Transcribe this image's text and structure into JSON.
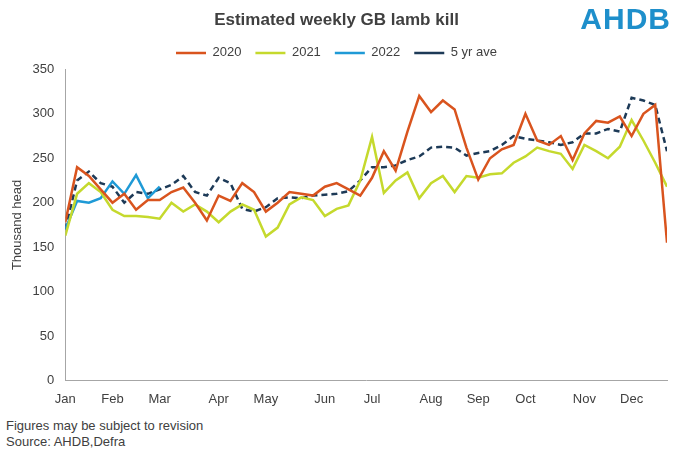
{
  "chart_data": {
    "type": "line",
    "title": "Estimated weekly GB lamb kill",
    "y_label": "Thousand head",
    "logo": "AHDB",
    "footnotes": [
      "Figures may be subject to revision",
      "Source: AHDB,Defra"
    ],
    "categories": [
      "Jan",
      null,
      null,
      null,
      "Feb",
      null,
      null,
      null,
      "Mar",
      null,
      null,
      null,
      null,
      "Apr",
      null,
      null,
      null,
      "May",
      null,
      null,
      null,
      null,
      "Jun",
      null,
      null,
      null,
      "Jul",
      null,
      null,
      null,
      null,
      "Aug",
      null,
      null,
      null,
      "Sep",
      null,
      null,
      null,
      "Oct",
      null,
      null,
      null,
      null,
      "Nov",
      null,
      null,
      null,
      "Dec",
      null,
      null,
      null
    ],
    "series": [
      {
        "name": "2020",
        "color": "#d9541e",
        "line_style": "solid",
        "values": [
          178,
          240,
          230,
          215,
          200,
          210,
          192,
          203,
          203,
          212,
          217,
          200,
          180,
          208,
          202,
          222,
          212,
          190,
          200,
          212,
          210,
          208,
          218,
          222,
          215,
          208,
          228,
          258,
          236,
          280,
          320,
          302,
          315,
          305,
          262,
          226,
          250,
          260,
          265,
          300,
          270,
          265,
          275,
          248,
          278,
          292,
          290,
          297,
          275,
          300,
          310,
          155
        ]
      },
      {
        "name": "2021",
        "color": "#c5d92d",
        "line_style": "solid",
        "values": [
          163,
          210,
          222,
          212,
          192,
          185,
          185,
          184,
          182,
          200,
          190,
          198,
          190,
          178,
          190,
          198,
          192,
          162,
          172,
          198,
          206,
          203,
          185,
          193,
          197,
          225,
          274,
          211,
          225,
          234,
          205,
          222,
          230,
          212,
          230,
          228,
          232,
          233,
          245,
          252,
          262,
          258,
          255,
          238,
          265,
          258,
          250,
          263,
          293,
          270,
          245,
          218
        ]
      },
      {
        "name": "2022",
        "color": "#1f9ad6",
        "line_style": "solid",
        "values": [
          170,
          202,
          200,
          205,
          224,
          210,
          231,
          205,
          218,
          null,
          null,
          null,
          null,
          null,
          null,
          null,
          null,
          null,
          null,
          null,
          null,
          null,
          null,
          null,
          null,
          null,
          null,
          null,
          null,
          null,
          null,
          null,
          null,
          null,
          null,
          null,
          null,
          null,
          null,
          null,
          null,
          null,
          null,
          null,
          null,
          null,
          null,
          null,
          null,
          null,
          null,
          null
        ]
      },
      {
        "name": "5 yr ave",
        "color": "#1d3a57",
        "line_style": "dashed",
        "values": [
          170,
          225,
          235,
          222,
          218,
          200,
          212,
          210,
          215,
          220,
          230,
          212,
          208,
          228,
          222,
          193,
          190,
          195,
          205,
          206,
          205,
          208,
          209,
          210,
          213,
          225,
          240,
          240,
          242,
          248,
          252,
          262,
          263,
          262,
          253,
          256,
          258,
          265,
          275,
          272,
          270,
          268,
          265,
          268,
          278,
          278,
          283,
          280,
          318,
          315,
          310,
          258
        ]
      }
    ],
    "ylim": [
      0,
      350
    ],
    "yticks": [
      0,
      50,
      100,
      150,
      200,
      250,
      300,
      350
    ],
    "grid": false,
    "legend": "top"
  }
}
